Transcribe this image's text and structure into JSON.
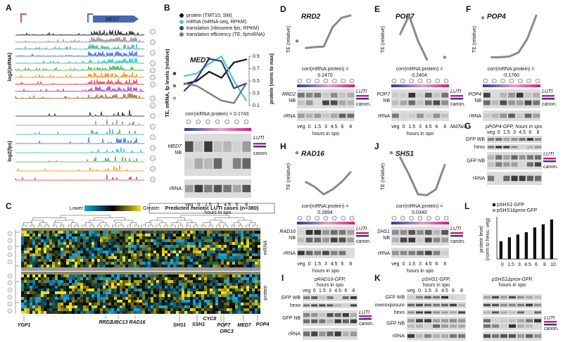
{
  "panel_a": {
    "label": "A",
    "gene": "MED7",
    "ylabel_mrna": "log2(mRNA)",
    "ylabel_fps": "log2(fps)"
  },
  "panel_b": {
    "label": "B",
    "chart": {
      "type": "line",
      "title": "MED7",
      "categories": [
        "veg",
        "0",
        "1.5",
        "3",
        "4.5",
        "6",
        "8"
      ],
      "xlabel": "hours in spo",
      "ylabel": "TE, mRNA, fp levels (relative)",
      "y2label": "protein (norm to max)",
      "y2lim": [
        0.1,
        0.9
      ],
      "y2ticks": [
        0.1,
        0.3,
        0.5,
        0.7,
        0.9
      ],
      "series": [
        {
          "name": "protein (TMT10, SM)",
          "color": "#111111",
          "axis": "y2",
          "values": [
            null,
            0.45,
            0.5,
            0.65,
            0.55,
            0.8,
            0.85
          ]
        },
        {
          "name": "mRNA (mRNA-seq, RPKM)",
          "color": "#5cc8c0",
          "values": [
            0.15,
            0.6,
            0.65,
            0.85,
            1.0,
            0.5,
            0.1
          ]
        },
        {
          "name": "translation (ribosome fps, RPKM)",
          "color": "#2c3e8c",
          "values": [
            0.65,
            0.3,
            0.55,
            0.95,
            0.9,
            0.35,
            0.45
          ]
        },
        {
          "name": "translation efficiency (TE; fp/mRNA)",
          "color": "#777777",
          "values": [
            0.4,
            0.45,
            0.4,
            0.25,
            0.1,
            0.05,
            0.45
          ]
        }
      ]
    },
    "corr_label": "corr(mRNA:protein) =",
    "corr_value": "0.1743",
    "blot": {
      "gene": "MED7",
      "nb": "NB",
      "rrna": "rRNA",
      "luti": "LUTI",
      "canon": "canon."
    }
  },
  "panel_c": {
    "label": "C",
    "scale_low": "Lower",
    "scale_high": "Greater",
    "title": "Predicted meiotic LUTI cases (n=380)",
    "row_mrna": "mRNA",
    "row_protein": "protein",
    "genes": [
      "YGP1",
      "RRD2",
      "UBC13",
      "RAD16",
      "SHS1",
      "SSH1",
      "CYC8",
      "POP7",
      "ORC3",
      "MED7",
      "POP4"
    ]
  },
  "panel_d": {
    "label": "D",
    "chart": {
      "type": "line",
      "title": "RRD2",
      "ylabel": "TE (relative)",
      "color": "#8a8a8a",
      "categories": [
        "veg",
        "0",
        "1.5",
        "3",
        "4.5",
        "6",
        "8"
      ],
      "values": [
        0.45,
        0.3,
        0.32,
        0.33,
        0.75,
        0.95,
        1.0
      ],
      "xlabel": "hours in spo"
    },
    "corr_label": "corr(mRNA:protein) =",
    "corr_value": "0.2470",
    "blot": {
      "gene": "RRD2",
      "nb": "NB",
      "rrna": "rRNA",
      "luti": "LUTI",
      "canon": "canon."
    }
  },
  "panel_e": {
    "label": "E",
    "chart": {
      "type": "line",
      "title": "POP7",
      "ylabel": "TE (relative)",
      "color": "#8a8a8a",
      "categories": [
        "veg",
        "0",
        "1.5",
        "3",
        "4.5",
        "6",
        "8"
      ],
      "values": [
        null,
        0.6,
        1.0,
        0.45,
        0.05,
        null,
        0.1
      ],
      "xlabel": "hours in spo"
    },
    "corr_label": "corr(mRNA:protein) =",
    "corr_value": "0.2404",
    "blot": {
      "gene": "POP7",
      "nb": "NB",
      "rrna": "rRNA",
      "luti": "LUTI",
      "canon": "canon.",
      "extra": "MATa/a"
    }
  },
  "panel_f": {
    "label": "F",
    "chart": {
      "type": "line",
      "title": "POP4",
      "ylabel": "TE (relative)",
      "color": "#8a8a8a",
      "categories": [
        null,
        null,
        null,
        null,
        null,
        null,
        null
      ],
      "values": [
        0.95,
        0.1,
        0.1,
        0.12,
        0.2,
        0.5,
        1.0
      ]
    },
    "corr_label": "corr(mRNA:protein) =",
    "corr_value": "-0.1760",
    "corr_color": "#e0452a",
    "blot": {
      "gene": "POP4",
      "nb": "NB",
      "rrna": "rRNA",
      "luti": "LUTI",
      "canon": "canon."
    }
  },
  "panel_g": {
    "label": "G",
    "title": "pPOP4-GFP, hours in spo",
    "categories": [
      "veg",
      "0",
      "1.5",
      "3",
      "4.5",
      "6",
      "8"
    ],
    "rows": [
      "GFP WB",
      "hexo",
      "GFP NB",
      "rRNA"
    ],
    "luti": "LUTI",
    "canon": "canon."
  },
  "panel_h": {
    "label": "H",
    "chart": {
      "type": "line",
      "title": "RAD16",
      "ylabel": "TE (relative)",
      "color": "#8a8a8a",
      "categories": [
        "veg",
        "0",
        "1.5",
        "3",
        "4.5",
        "6",
        "8"
      ],
      "values": [
        0.95,
        0.35,
        0.25,
        0.1,
        0.2,
        0.35,
        0.55
      ],
      "xlabel": "hours in spo"
    },
    "corr_label": "corr(mRNA:protein) =",
    "corr_value": "0.2894",
    "blot": {
      "gene": "RAD16",
      "nb": "NB",
      "rrna": "rRNA",
      "luti": "LUTI",
      "canon": "canon."
    }
  },
  "panel_i": {
    "label": "I",
    "title_lines": [
      "pRAD16-GFP,",
      "hours in spo"
    ],
    "categories": [
      "veg",
      "0",
      "1.5",
      "3",
      "4.5",
      "6",
      "8"
    ],
    "rows": [
      "GFP WB",
      "hexo",
      "GFP NB",
      "rRNA"
    ],
    "luti": "LUTI",
    "canon": "canon."
  },
  "panel_j": {
    "label": "J",
    "chart": {
      "type": "line",
      "title": "SHS1",
      "ylabel": "TE (relative)",
      "color": "#8a8a8a",
      "categories": [
        "veg",
        "0",
        "1.5",
        "3",
        "4.5",
        "6",
        "8"
      ],
      "values": [
        0.95,
        0.85,
        0.5,
        0.1,
        0.08,
        0.2,
        0.7
      ],
      "xlabel": "hours in spo"
    },
    "corr_label": "corr(mRNA:protein) =",
    "corr_value": "0.0340",
    "blot": {
      "gene": "SHS1",
      "nb": "NB",
      "rrna": "rRNA",
      "luti": "LUTI",
      "canon": "canon."
    }
  },
  "panel_k": {
    "label": "K",
    "constructs": [
      {
        "title_lines": [
          "pSHS1-GFP,",
          "hours in spo"
        ],
        "categories": [
          "veg",
          "0",
          "1.5",
          "3",
          "4.5",
          "6",
          "8"
        ]
      },
      {
        "title_lines": [
          "pSHS1Δprox-GFP,",
          "hours in spo"
        ]
      }
    ],
    "rows": [
      "GFP WB",
      "overexposure",
      "hexo",
      "GFP NB",
      "rRNA"
    ],
    "luti": "LUTI",
    "canon": "canon."
  },
  "panel_l": {
    "label": "L",
    "chart": {
      "type": "bar",
      "ylabel_lines": [
        "protein level",
        "(norm to hexo, veg)"
      ],
      "categories": [
        "0",
        "1.5",
        "3",
        "4.5",
        "6",
        "8",
        "10"
      ],
      "series": [
        {
          "name": "pSHS1-GFP",
          "color": "#111111",
          "values": [
            0.45,
            0.55,
            0.62,
            0.68,
            0.8,
            0.88,
            1.0
          ]
        },
        {
          "name": "pSHS1Δprox-GFP",
          "color": "#9a9a9a",
          "values": [
            0,
            0,
            0,
            0,
            0,
            0,
            0
          ]
        }
      ]
    }
  }
}
